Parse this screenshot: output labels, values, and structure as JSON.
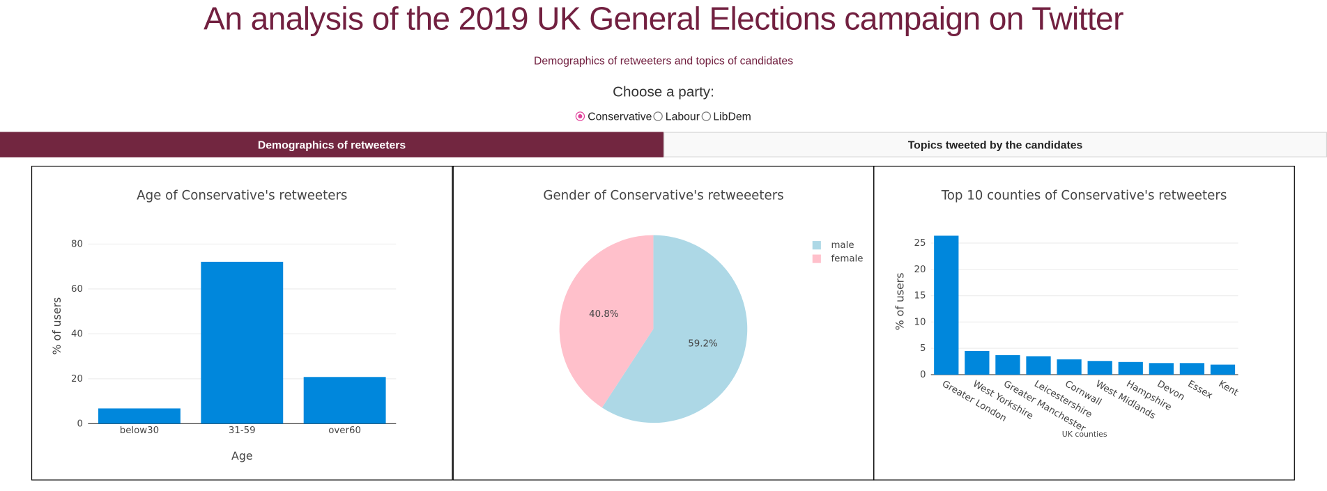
{
  "header": {
    "title": "An analysis of the 2019 UK General Elections campaign on Twitter",
    "subtitle": "Demographics of retweeters and topics of candidates"
  },
  "controls": {
    "label": "Choose a party:",
    "options": [
      "Conservative",
      "Labour",
      "LibDem"
    ],
    "selected": 0
  },
  "tabs": {
    "items": [
      "Demographics of retweeters",
      "Topics tweeted by the candidates"
    ],
    "active": 0
  },
  "chart_data": [
    {
      "type": "bar",
      "title": "Age of Conservative's retweeters",
      "x_label": "Age",
      "y_label": "% of users",
      "categories": [
        "below30",
        "31-59",
        "over60"
      ],
      "values": [
        6.8,
        72.1,
        20.8
      ],
      "color": "#0087dc",
      "ylim": [
        0,
        87
      ],
      "yticks": [
        0,
        20,
        40,
        60,
        80
      ],
      "grid": true
    },
    {
      "type": "pie",
      "title": "Gender of Conservative's retweeeters",
      "categories": [
        "male",
        "female"
      ],
      "values": [
        59.2,
        40.8
      ],
      "value_labels": [
        "59.2%",
        "40.8%"
      ],
      "colors": [
        "#add8e6",
        "#ffc0cb"
      ],
      "legend": "top-right"
    },
    {
      "type": "bar",
      "title": "Top 10 counties of Conservative's retweeters",
      "x_label": "UK counties",
      "y_label": "% of users",
      "categories": [
        "Greater London",
        "West Yorkshire",
        "Greater Manchester",
        "Leicestershire",
        "Cornwall",
        "West Midlands",
        "Hampshire",
        "Devon",
        "Essex",
        "Kent"
      ],
      "values": [
        26.4,
        4.5,
        3.7,
        3.5,
        2.9,
        2.6,
        2.4,
        2.2,
        2.2,
        1.9
      ],
      "color": "#0087dc",
      "ylim": [
        0,
        27.8
      ],
      "yticks": [
        0,
        5,
        10,
        15,
        20,
        25
      ],
      "grid": true
    }
  ]
}
